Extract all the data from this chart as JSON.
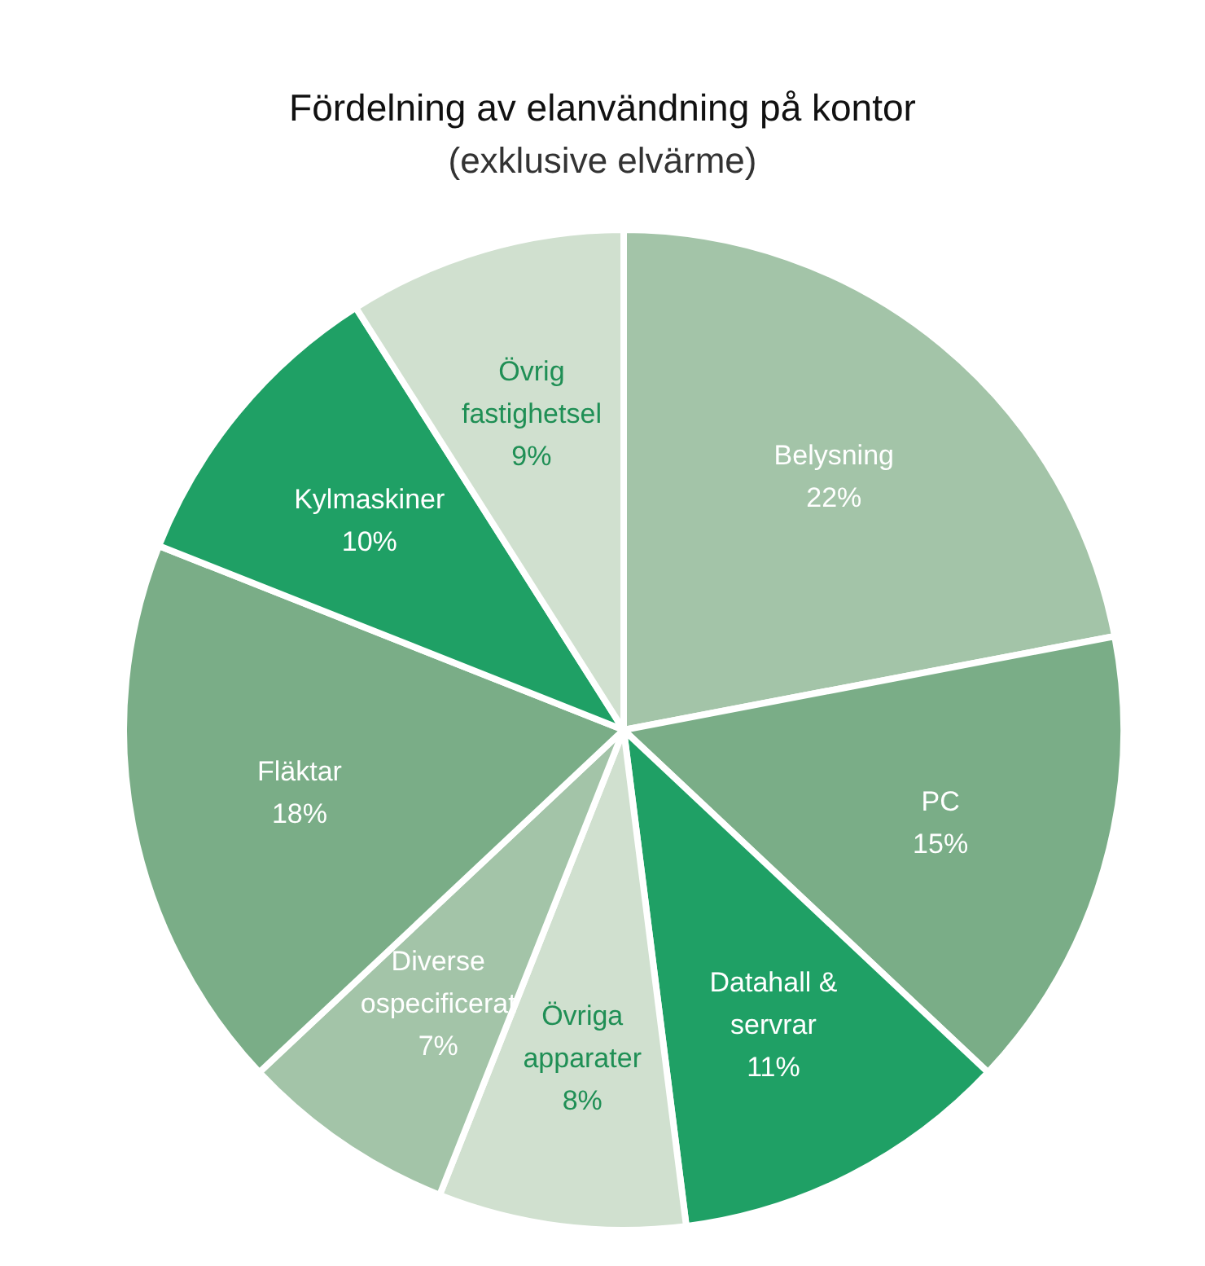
{
  "chart_data": {
    "type": "pie",
    "title": "Fördelning av elanvändning på kontor",
    "subtitle": "(exklusive elvärme)",
    "categories": [
      "Belysning",
      "PC",
      "Datahall & servrar",
      "Övriga apparater",
      "Diverse ospecificerat",
      "Fläktar",
      "Kylmaskiner",
      "Övrig fastighetsel"
    ],
    "values": [
      22,
      15,
      11,
      8,
      7,
      18,
      10,
      9
    ],
    "value_labels": [
      "22%",
      "15%",
      "11%",
      "8%",
      "7%",
      "18%",
      "10%",
      "9%"
    ],
    "colors": [
      "#a3c4a8",
      "#7aad87",
      "#1fa065",
      "#d0e0cf",
      "#a3c4a8",
      "#7aad87",
      "#1fa065",
      "#d0e0cf"
    ],
    "legend": false
  }
}
